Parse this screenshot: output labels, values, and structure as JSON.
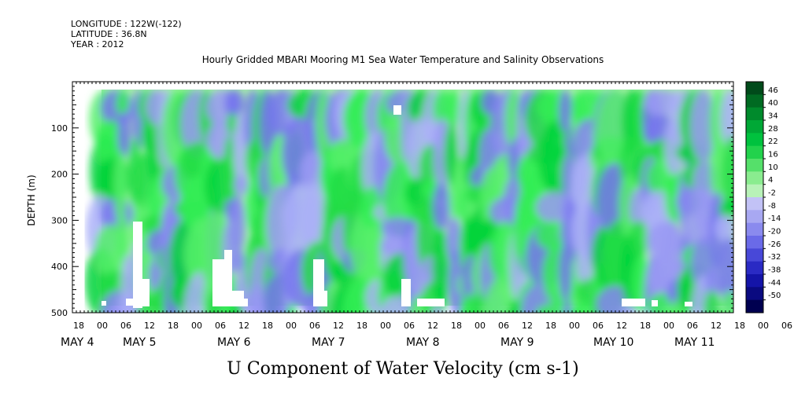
{
  "header": {
    "longitude": "LONGITUDE : 122W(-122)",
    "latitude": "LATITUDE : 36.8N",
    "year": "YEAR : 2012"
  },
  "chart_data": {
    "type": "heatmap",
    "title": "Hourly Gridded MBARI Mooring M1 Sea Water Temperature and Salinity Observations",
    "xlabel": "",
    "ylabel": "DEPTH (m)",
    "bottom_label": "U Component of Water Velocity (cm s-1)",
    "ylim": [
      500,
      0
    ],
    "y_ticks": [
      100,
      200,
      300,
      400,
      500
    ],
    "x_hour_ticks": [
      "18",
      "00",
      "06",
      "12",
      "18",
      "00",
      "06",
      "12",
      "18",
      "00",
      "06",
      "12",
      "18",
      "00",
      "06",
      "12",
      "18",
      "00",
      "06",
      "12",
      "18",
      "00",
      "06",
      "12",
      "18",
      "00",
      "06",
      "12",
      "18",
      "00",
      "06",
      "12"
    ],
    "x_day_labels": [
      "MAY  4",
      "MAY  5",
      "MAY  6",
      "MAY  7",
      "MAY  8",
      "MAY  9",
      "MAY 10",
      "MAY 11"
    ],
    "colorbar": {
      "labels": [
        "46",
        "40",
        "34",
        "28",
        "22",
        "16",
        "10",
        "4",
        "-2",
        "-8",
        "-14",
        "-20",
        "-26",
        "-32",
        "-38",
        "-44",
        "-50"
      ],
      "positive_color": "#00cc33",
      "negative_color": "#7777ff"
    }
  }
}
